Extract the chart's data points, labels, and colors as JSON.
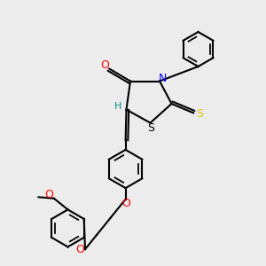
{
  "bg_color": "#ececec",
  "bond_color": "#000000",
  "atom_colors": {
    "O": "#ff0000",
    "N": "#0000ff",
    "S_thioxo": "#cccc00",
    "S_ring": "#000000",
    "H": "#008080",
    "C": "#000000"
  },
  "title": ""
}
